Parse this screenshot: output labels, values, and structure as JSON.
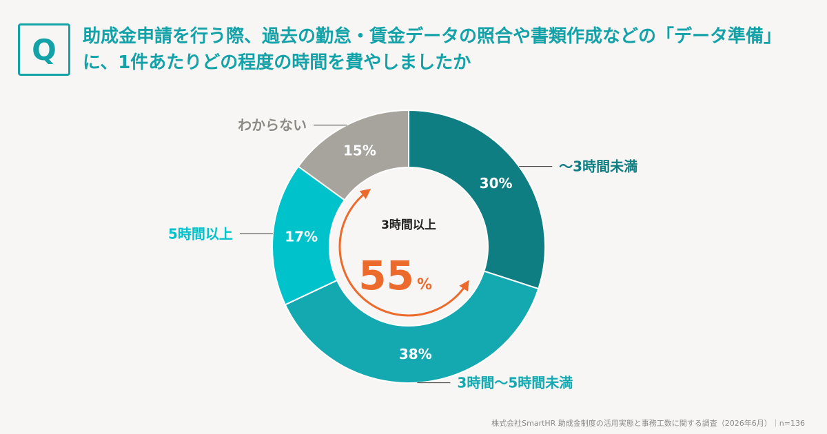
{
  "question": {
    "badge": "Q",
    "text": "助成金申請を行う際、過去の勤怠・賃金データの照合や書類作成などの「データ準備」に、1件あたりどの程度の時間を費やしましたか"
  },
  "chart_data": {
    "type": "pie",
    "variant": "donut",
    "categories": [
      "〜3時間未満",
      "3時間〜5時間未満",
      "5時間以上",
      "わからない"
    ],
    "values": [
      30,
      38,
      17,
      15
    ],
    "value_labels": [
      "30%",
      "38%",
      "17%",
      "15%"
    ],
    "colors": [
      "#0e7e82",
      "#14a9b1",
      "#00c2cb",
      "#a7a39d"
    ],
    "label_colors": [
      "#0e7e82",
      "#14a9b1",
      "#00c2cb",
      "#8d8a85"
    ],
    "center": {
      "label": "3時間以上",
      "value": "55",
      "unit": "%",
      "color": "#ec6a2c"
    }
  },
  "footer": {
    "source": "株式会社SmartHR 助成金制度の活用実態と事務工数に関する調査（2026年6月）｜n=136"
  }
}
